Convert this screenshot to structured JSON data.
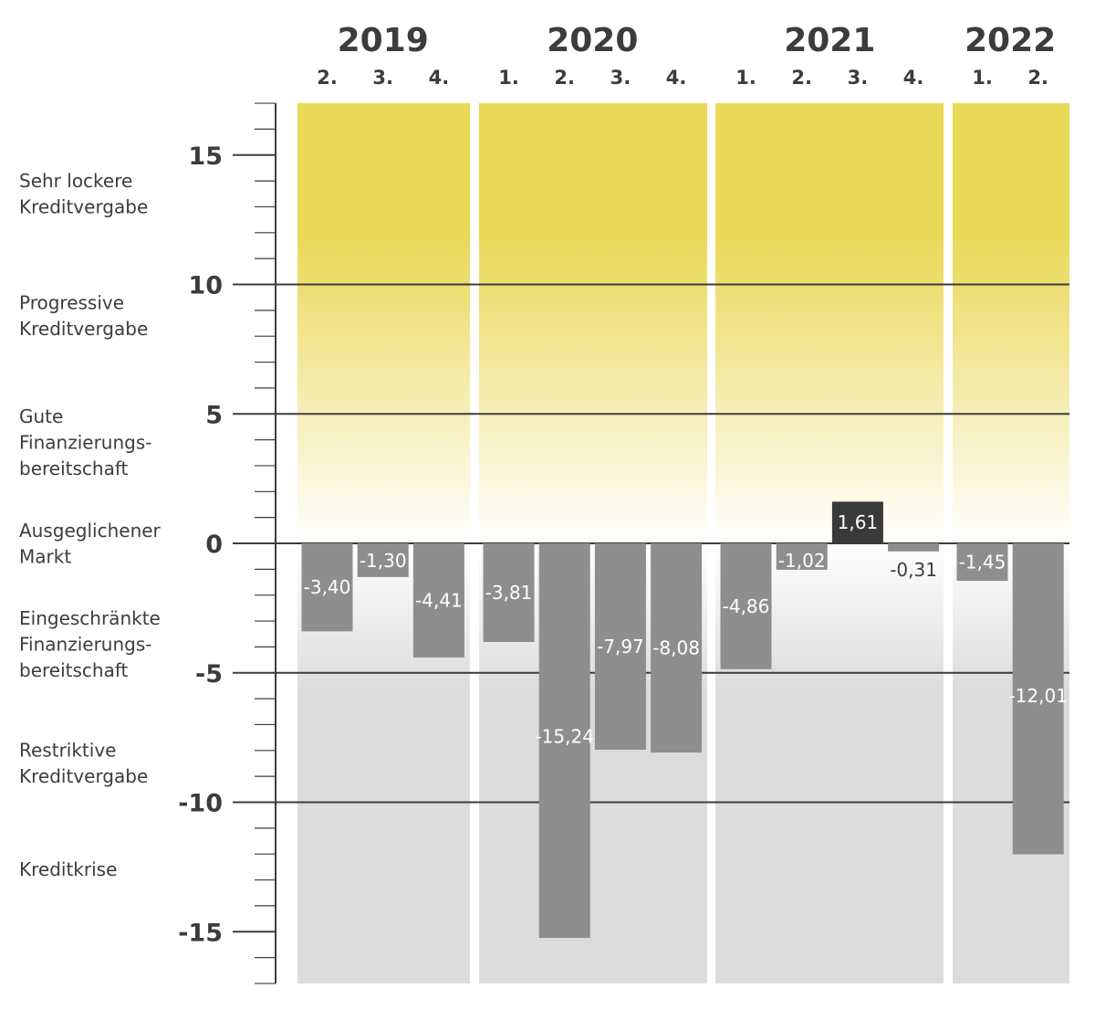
{
  "chart_data": {
    "type": "bar",
    "years": [
      {
        "label": "2019",
        "quarters": [
          "2.",
          "3.",
          "4."
        ]
      },
      {
        "label": "2020",
        "quarters": [
          "1.",
          "2.",
          "3.",
          "4."
        ]
      },
      {
        "label": "2021",
        "quarters": [
          "1.",
          "2.",
          "3.",
          "4."
        ]
      },
      {
        "label": "2022",
        "quarters": [
          "1.",
          "2."
        ]
      }
    ],
    "values": [
      -3.4,
      -1.3,
      -4.41,
      -3.81,
      -15.24,
      -7.97,
      -8.08,
      -4.86,
      -1.02,
      1.61,
      -0.31,
      -1.45,
      -12.01
    ],
    "value_labels": [
      "-3,40",
      "-1,30",
      "-4,41",
      "-3,81",
      "-15,24",
      "-7,97",
      "-8,08",
      "-4,86",
      "-1,02",
      "1,61",
      "-0,31",
      "-1,45",
      "-12,01"
    ],
    "ylim": [
      -17,
      17
    ],
    "yticks": [
      15,
      10,
      5,
      0,
      -5,
      -10,
      -15
    ],
    "ytick_labels": [
      "15",
      "10",
      "5",
      "0",
      "-5",
      "-10",
      "-15"
    ],
    "gridlines": [
      10,
      5,
      0,
      -5,
      -10
    ],
    "bands": [
      {
        "label_lines": [
          "Sehr lockere",
          "Kreditvergabe"
        ],
        "center": 13.5
      },
      {
        "label_lines": [
          "Progressive",
          "Kreditvergabe"
        ],
        "center": 8.8
      },
      {
        "label_lines": [
          "Gute",
          "Finanzierungs-",
          "bereitschaft"
        ],
        "center": 3.9
      },
      {
        "label_lines": [
          "Ausgeglichener",
          "Markt"
        ],
        "center": 0.0
      },
      {
        "label_lines": [
          "Eingeschränkte",
          "Finanzierungs-",
          "bereitschaft"
        ],
        "center": -3.9
      },
      {
        "label_lines": [
          "Restriktive",
          "Kreditvergabe"
        ],
        "center": -8.5
      },
      {
        "label_lines": [
          "Kreditkrise"
        ],
        "center": -12.6
      }
    ],
    "colors": {
      "bar_negative": "#8e8e8f",
      "bar_positive": "#3a3a3b",
      "bg_top": "#ead857",
      "bg_zero": "#ffffff",
      "bg_bottom": "#dcdcdd",
      "gridline": "#3c3c3c",
      "text": "#3c3c3c"
    }
  }
}
